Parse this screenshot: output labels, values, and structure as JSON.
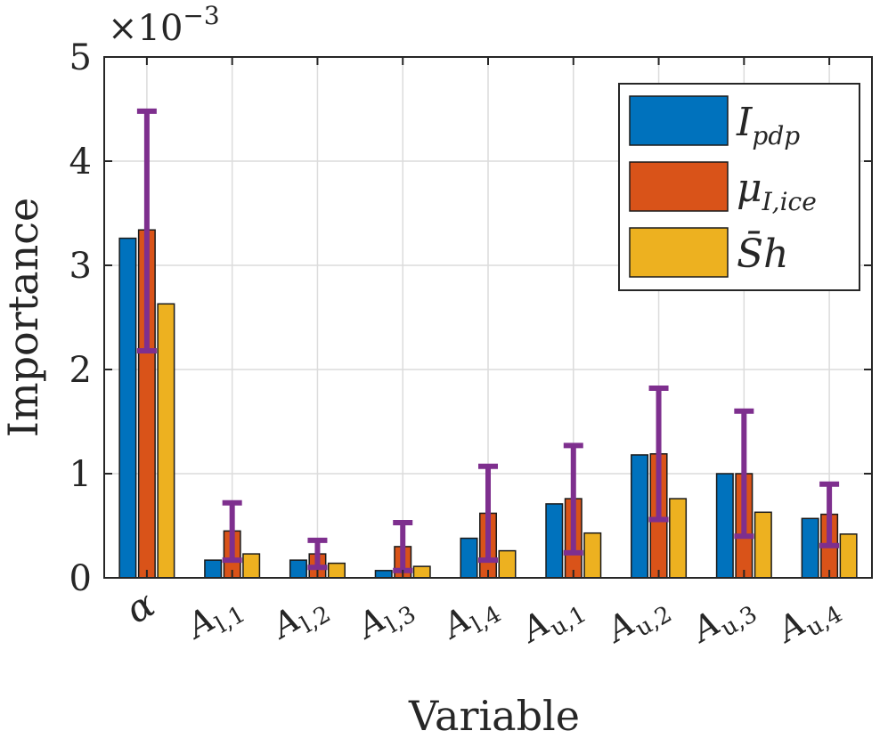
{
  "chart_data": {
    "type": "bar",
    "categories": [
      "α",
      "A_{l,1}",
      "A_{l,2}",
      "A_{l,3}",
      "A_{l,4}",
      "A_{u,1}",
      "A_{u,2}",
      "A_{u,3}",
      "A_{u,4}"
    ],
    "category_labels": [
      {
        "base": "α",
        "sub": ""
      },
      {
        "base": "A",
        "sub": "l,1"
      },
      {
        "base": "A",
        "sub": "l,2"
      },
      {
        "base": "A",
        "sub": "l,3"
      },
      {
        "base": "A",
        "sub": "l,4"
      },
      {
        "base": "A",
        "sub": "u,1"
      },
      {
        "base": "A",
        "sub": "u,2"
      },
      {
        "base": "A",
        "sub": "u,3"
      },
      {
        "base": "A",
        "sub": "u,4"
      }
    ],
    "series": [
      {
        "name": "I_{pdp}",
        "legend_base": "I",
        "legend_sub": "pdp",
        "color": "#0072BD",
        "values": [
          3.26,
          0.17,
          0.17,
          0.07,
          0.38,
          0.71,
          1.18,
          1.0,
          0.57
        ]
      },
      {
        "name": "μ_{I,ice}",
        "legend_base": "μ",
        "legend_sub": "I,ice",
        "color": "#D95319",
        "values": [
          3.34,
          0.45,
          0.23,
          0.3,
          0.62,
          0.76,
          1.19,
          1.0,
          0.61
        ]
      },
      {
        "name": "S̄h",
        "legend_base": "S̄h",
        "legend_sub": "",
        "color": "#EDB120",
        "values": [
          2.63,
          0.23,
          0.14,
          0.11,
          0.26,
          0.43,
          0.76,
          0.63,
          0.42
        ]
      }
    ],
    "error_bars": {
      "series": "μ_{I,ice}",
      "color": "#7E2F8E",
      "low": [
        2.18,
        0.17,
        0.1,
        0.07,
        0.17,
        0.24,
        0.56,
        0.4,
        0.31
      ],
      "high": [
        4.48,
        0.72,
        0.36,
        0.53,
        1.07,
        1.27,
        1.82,
        1.6,
        0.9
      ]
    },
    "xlabel": "Variable",
    "ylabel": "Importance",
    "ylim": [
      0,
      5
    ],
    "yticks": [
      0,
      1,
      2,
      3,
      4,
      5
    ],
    "y_exponent_base": "×10",
    "y_exponent_power": "−3",
    "grid": true,
    "legend_position": "top-right"
  }
}
